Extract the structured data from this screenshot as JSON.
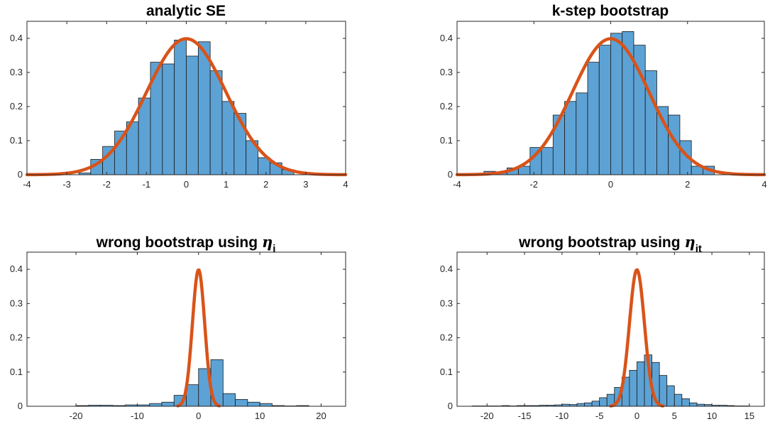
{
  "colors": {
    "bar": "#5da2d5",
    "curve": "#d95319"
  },
  "chart_data": [
    {
      "type": "bar",
      "subtype": "histogram-with-normal-pdf",
      "title": "analytic SE",
      "title_subscript": "",
      "xlabel": "",
      "ylabel": "",
      "xlim": [
        -4,
        4
      ],
      "ylim": [
        0,
        0.45
      ],
      "grid": false,
      "xticks": [
        -4,
        -3,
        -2,
        -1,
        0,
        1,
        2,
        3,
        4
      ],
      "xtick_labels": [
        "-4",
        "-3",
        "-2",
        "-1",
        "0",
        "1",
        "2",
        "3",
        "4"
      ],
      "yticks": [
        0,
        0.1,
        0.2,
        0.3,
        0.4
      ],
      "ytick_labels": [
        "0",
        "0.1",
        "0.2",
        "0.3",
        "0.4"
      ],
      "bin_edges": [
        -2.7,
        -2.4,
        -2.1,
        -1.8,
        -1.5,
        -1.2,
        -0.9,
        -0.6,
        -0.3,
        0.0,
        0.3,
        0.6,
        0.9,
        1.2,
        1.5,
        1.8,
        2.1,
        2.4,
        2.7
      ],
      "counts": [
        0.005,
        0.045,
        0.083,
        0.128,
        0.155,
        0.225,
        0.33,
        0.325,
        0.395,
        0.348,
        0.39,
        0.305,
        0.215,
        0.18,
        0.1,
        0.05,
        0.035,
        0.015
      ],
      "curve": {
        "name": "N(0,1) density",
        "mu": 0,
        "sigma": 1,
        "peak": 0.399
      }
    },
    {
      "type": "bar",
      "subtype": "histogram-with-normal-pdf",
      "title": "k-step bootstrap",
      "title_subscript": "",
      "xlabel": "",
      "ylabel": "",
      "xlim": [
        -4,
        4
      ],
      "ylim": [
        0,
        0.45
      ],
      "grid": false,
      "xticks": [
        -4,
        -2,
        0,
        2,
        4
      ],
      "xtick_labels": [
        "-4",
        "-2",
        "0",
        "2",
        "4"
      ],
      "yticks": [
        0,
        0.1,
        0.2,
        0.3,
        0.4
      ],
      "ytick_labels": [
        "0",
        "0.1",
        "0.2",
        "0.3",
        "0.4"
      ],
      "bin_edges": [
        -3.3,
        -3.0,
        -2.7,
        -2.4,
        -2.1,
        -1.8,
        -1.5,
        -1.2,
        -0.9,
        -0.6,
        -0.3,
        0.0,
        0.3,
        0.6,
        0.9,
        1.2,
        1.5,
        1.8,
        2.1,
        2.4,
        2.7
      ],
      "counts": [
        0.01,
        0.005,
        0.02,
        0.025,
        0.08,
        0.08,
        0.175,
        0.215,
        0.24,
        0.33,
        0.38,
        0.415,
        0.42,
        0.38,
        0.305,
        0.2,
        0.175,
        0.1,
        0.025,
        0.025,
        0.01
      ],
      "curve": {
        "name": "N(0,1) density",
        "mu": 0,
        "sigma": 1,
        "peak": 0.399
      }
    },
    {
      "type": "bar",
      "subtype": "histogram-with-normal-pdf",
      "title": "wrong bootstrap using ",
      "title_symbol": "η",
      "title_subscript": "i",
      "xlabel": "",
      "ylabel": "",
      "xlim": [
        -28,
        24
      ],
      "ylim": [
        0,
        0.45
      ],
      "grid": false,
      "xticks": [
        -20,
        -10,
        0,
        10,
        20
      ],
      "xtick_labels": [
        "-20",
        "-10",
        "0",
        "10",
        "20"
      ],
      "yticks": [
        0,
        0.1,
        0.2,
        0.3,
        0.4
      ],
      "ytick_labels": [
        "0",
        "0.1",
        "0.2",
        "0.3",
        "0.4"
      ],
      "bin_edges": [
        -20,
        -18,
        -16,
        -14,
        -12,
        -10,
        -8,
        -6,
        -4,
        -2,
        0,
        2,
        4,
        6,
        8,
        10,
        12,
        14,
        16,
        18
      ],
      "counts": [
        0.002,
        0.003,
        0.003,
        0.002,
        0.004,
        0.004,
        0.008,
        0.012,
        0.032,
        0.063,
        0.11,
        0.136,
        0.037,
        0.02,
        0.012,
        0.008,
        0.002,
        0.001,
        0.002
      ],
      "curve": {
        "name": "N(0,1) density",
        "mu": 0,
        "sigma": 1,
        "peak": 0.399
      }
    },
    {
      "type": "bar",
      "subtype": "histogram-with-normal-pdf",
      "title": "wrong bootstrap using ",
      "title_symbol": "η",
      "title_subscript": "it",
      "xlabel": "",
      "ylabel": "",
      "xlim": [
        -24,
        17
      ],
      "ylim": [
        0,
        0.45
      ],
      "grid": false,
      "xticks": [
        -20,
        -15,
        -10,
        -5,
        0,
        5,
        10,
        15
      ],
      "xtick_labels": [
        "-20",
        "-15",
        "-10",
        "-5",
        "0",
        "5",
        "10",
        "15"
      ],
      "yticks": [
        0,
        0.1,
        0.2,
        0.3,
        0.4
      ],
      "ytick_labels": [
        "0",
        "0.1",
        "0.2",
        "0.3",
        "0.4"
      ],
      "bin_edges": [
        -22,
        -21,
        -20,
        -19,
        -18,
        -17,
        -16,
        -15,
        -14,
        -13,
        -12,
        -11,
        -10,
        -9,
        -8,
        -7,
        -6,
        -5,
        -4,
        -3,
        -2,
        -1,
        0,
        1,
        2,
        3,
        4,
        5,
        6,
        7,
        8,
        9,
        10,
        11,
        12,
        13,
        14,
        15
      ],
      "counts": [
        0.001,
        0.001,
        0.001,
        0.001,
        0.002,
        0.001,
        0.002,
        0.002,
        0.002,
        0.003,
        0.003,
        0.004,
        0.006,
        0.005,
        0.008,
        0.01,
        0.015,
        0.025,
        0.035,
        0.055,
        0.085,
        0.105,
        0.13,
        0.15,
        0.128,
        0.09,
        0.06,
        0.035,
        0.022,
        0.01,
        0.006,
        0.005,
        0.003,
        0.003,
        0.002,
        0.001,
        0.001
      ],
      "curve": {
        "name": "N(0,1) density",
        "mu": 0,
        "sigma": 1,
        "peak": 0.399
      }
    }
  ]
}
